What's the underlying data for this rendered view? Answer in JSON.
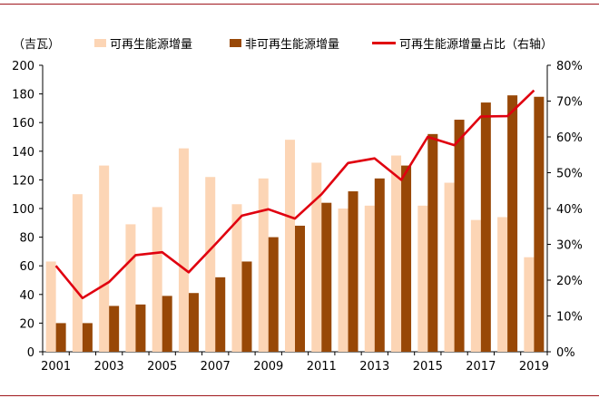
{
  "chart_data": {
    "type": "bar",
    "unit_label": "（吉瓦）",
    "categories": [
      "2001",
      "2002",
      "2003",
      "2004",
      "2005",
      "2006",
      "2007",
      "2008",
      "2009",
      "2010",
      "2011",
      "2012",
      "2013",
      "2014",
      "2015",
      "2016",
      "2017",
      "2018",
      "2019"
    ],
    "x_tick_labels": [
      "2001",
      "2003",
      "2005",
      "2007",
      "2009",
      "2011",
      "2013",
      "2015",
      "2017",
      "2019"
    ],
    "series": [
      {
        "name": "可再生能源增量",
        "kind": "bar",
        "axis": "left",
        "color": "#fcd5b5",
        "values": [
          63,
          110,
          130,
          89,
          101,
          142,
          122,
          103,
          121,
          148,
          132,
          100,
          102,
          137,
          102,
          118,
          92,
          94,
          66
        ]
      },
      {
        "name": "非可再生能源增量",
        "kind": "bar",
        "axis": "left",
        "color": "#984807",
        "values": [
          20,
          20,
          32,
          33,
          39,
          41,
          52,
          63,
          80,
          88,
          104,
          112,
          121,
          130,
          152,
          162,
          174,
          179,
          178
        ]
      },
      {
        "name": "可再生能源增量占比（右轴）",
        "kind": "line",
        "axis": "right",
        "color": "#e0000f",
        "values": [
          0.24,
          0.15,
          0.195,
          0.27,
          0.278,
          0.222,
          0.3,
          0.38,
          0.398,
          0.372,
          0.44,
          0.527,
          0.54,
          0.48,
          0.6,
          0.577,
          0.657,
          0.658,
          0.73
        ]
      }
    ],
    "y_left": {
      "min": 0,
      "max": 200,
      "step": 20,
      "ticks": [
        "0",
        "20",
        "40",
        "60",
        "80",
        "100",
        "120",
        "140",
        "160",
        "180",
        "200"
      ]
    },
    "y_right": {
      "min": 0,
      "max": 0.8,
      "step": 0.1,
      "ticks": [
        "0%",
        "10%",
        "20%",
        "30%",
        "40%",
        "50%",
        "60%",
        "70%",
        "80%"
      ]
    },
    "grid": false,
    "legend_position": "top"
  }
}
